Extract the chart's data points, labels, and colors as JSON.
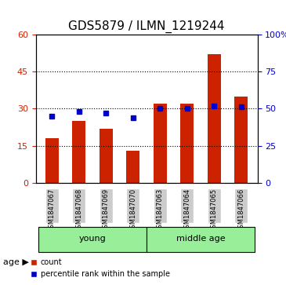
{
  "title": "GDS5879 / ILMN_1219244",
  "categories": [
    "GSM1847067",
    "GSM1847068",
    "GSM1847069",
    "GSM1847070",
    "GSM1847063",
    "GSM1847064",
    "GSM1847065",
    "GSM1847066"
  ],
  "count_values": [
    18,
    25,
    22,
    13,
    32,
    32,
    52,
    35
  ],
  "percentile_values": [
    45,
    48,
    47,
    44,
    50,
    50,
    52,
    51
  ],
  "left_ylim": [
    0,
    60
  ],
  "right_ylim": [
    0,
    100
  ],
  "left_yticks": [
    0,
    15,
    30,
    45,
    60
  ],
  "right_yticks": [
    0,
    25,
    50,
    75,
    100
  ],
  "right_yticklabels": [
    "0",
    "25",
    "50",
    "75",
    "100%"
  ],
  "bar_color": "#cc2200",
  "marker_color": "#0000cc",
  "group_labels": [
    "young",
    "middle age"
  ],
  "group_ranges": [
    [
      0,
      4
    ],
    [
      4,
      8
    ]
  ],
  "group_bg_color": "#99ee99",
  "age_label": "age",
  "label_count": "count",
  "label_percentile": "percentile rank within the sample",
  "bar_width": 0.5,
  "title_fontsize": 11,
  "tick_fontsize": 8,
  "label_fontsize": 8,
  "grid_color": "black",
  "grid_linestyle": "dotted"
}
